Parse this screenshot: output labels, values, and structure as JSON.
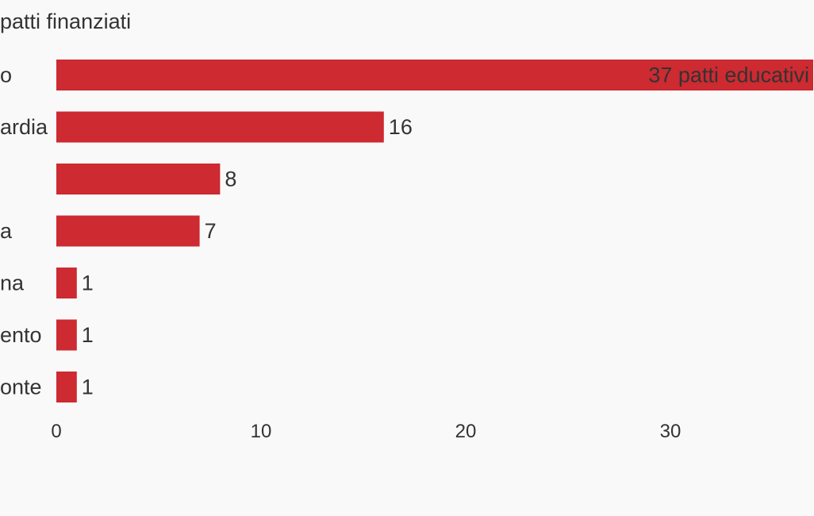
{
  "chart_data": {
    "type": "bar",
    "orientation": "horizontal",
    "title": "patti finanziati",
    "categories": [
      "o",
      "ardia",
      "",
      "a",
      "na",
      "ento",
      "onte"
    ],
    "values": [
      37,
      16,
      8,
      7,
      1,
      1,
      1
    ],
    "value_labels": [
      "37 patti educativi",
      "16",
      "8",
      "7",
      "1",
      "1",
      "1"
    ],
    "xlim": [
      0,
      37
    ],
    "xticks": [
      "0",
      "10",
      "20",
      "30"
    ],
    "grid": false,
    "bar_color": "#cd2a31"
  }
}
